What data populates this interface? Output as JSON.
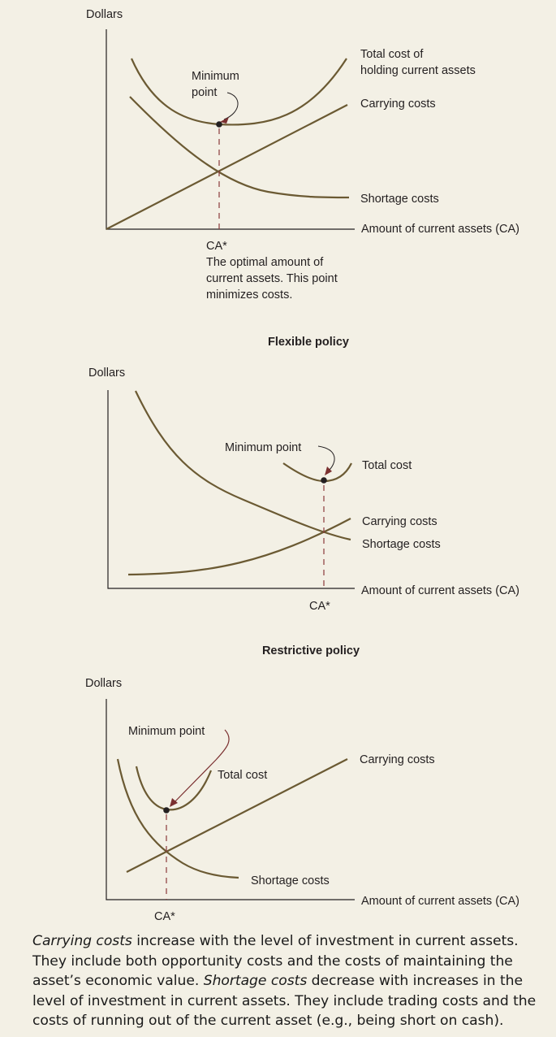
{
  "diagram1": {
    "y_axis": "Dollars",
    "total_line1": "Total cost of",
    "total_line2": "holding current assets",
    "carrying": "Carrying costs",
    "shortage": "Shortage costs",
    "x_axis": "Amount of current assets (CA)",
    "min_line1": "Minimum",
    "min_line2": "point",
    "ca_star": "CA*",
    "note_line1": "The optimal amount of",
    "note_line2": "current assets. This point",
    "note_line3": "minimizes costs."
  },
  "diagram2": {
    "title": "Flexible policy",
    "y_axis": "Dollars",
    "min_point": "Minimum point",
    "total": "Total cost",
    "carrying": "Carrying costs",
    "shortage": "Shortage costs",
    "x_axis": "Amount of current assets (CA)",
    "ca_star": "CA*"
  },
  "diagram3": {
    "title": "Restrictive policy",
    "y_axis": "Dollars",
    "min_point": "Minimum point",
    "total": "Total cost",
    "carrying": "Carrying costs",
    "shortage": "Shortage costs",
    "x_axis": "Amount of current assets (CA)",
    "ca_star": "CA*"
  },
  "caption": {
    "carrying_term": "Carrying costs",
    "carrying_text": " increase with the level of investment in current assets. They include both opportunity costs and the costs of maintaining the asset’s economic value. ",
    "shortage_term": "Shortage costs",
    "shortage_text": " decrease with increases in the level of investment in current assets. They include trading costs and the costs of running out of the current asset (e.g., being short on cash)."
  },
  "colors": {
    "background": "#f3f0e5",
    "curve": "#6b5a33",
    "dashed_line": "#8b3a3a"
  }
}
